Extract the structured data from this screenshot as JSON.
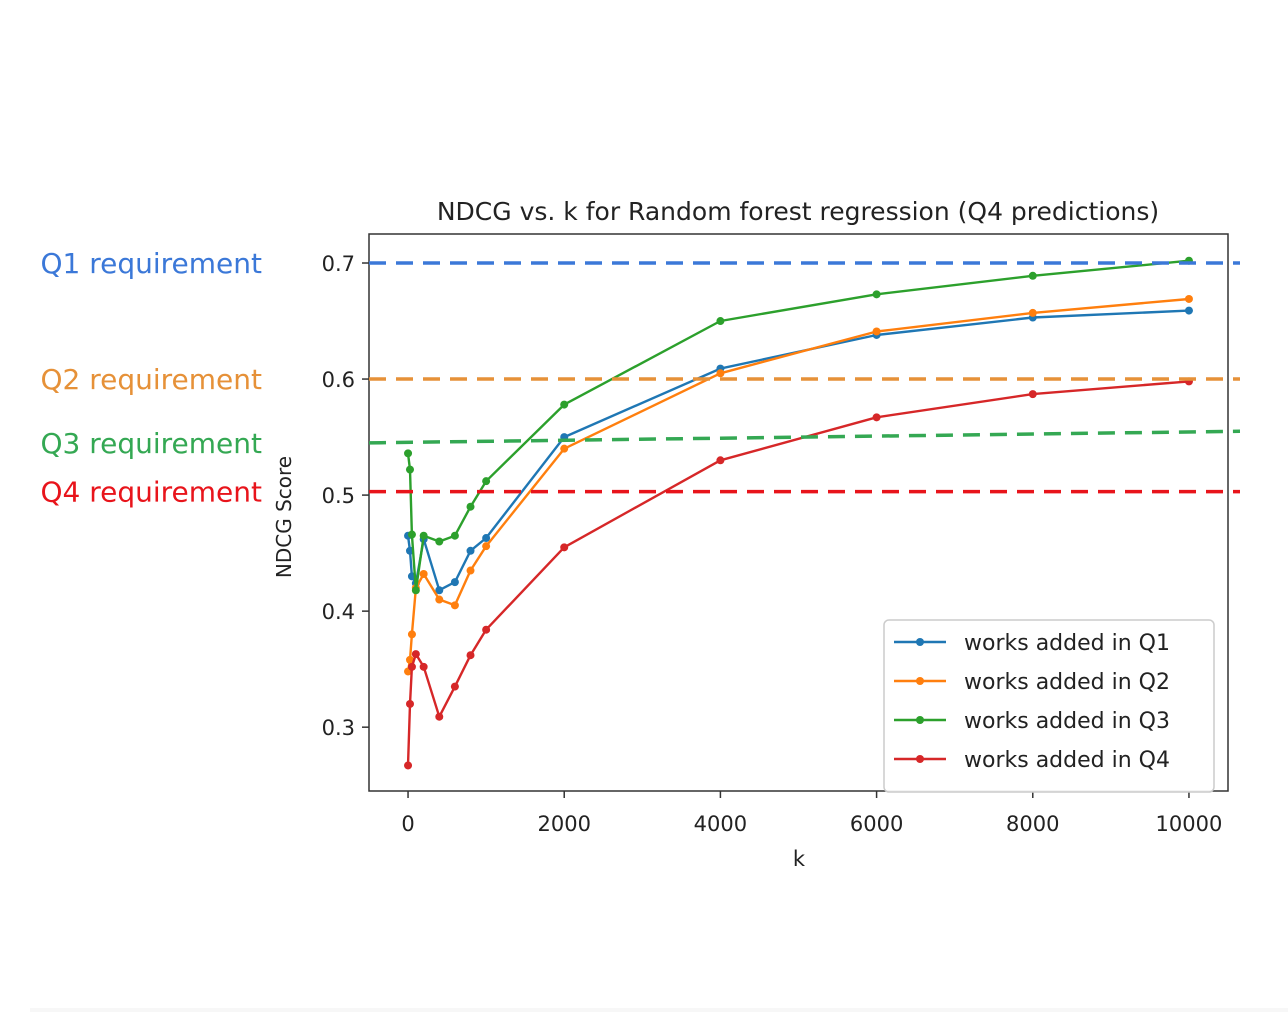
{
  "chart_data": {
    "type": "line",
    "title": "NDCG vs. k for Random forest regression (Q4 predictions)",
    "xlabel": "k",
    "ylabel": "NDCG Score",
    "xlim": [
      -500,
      10500
    ],
    "ylim": [
      0.245,
      0.725
    ],
    "xticks": [
      0,
      2000,
      4000,
      6000,
      8000,
      10000
    ],
    "yticks": [
      0.3,
      0.4,
      0.5,
      0.6,
      0.7
    ],
    "legend": "bottom-right",
    "series": [
      {
        "name": "works added in Q1",
        "color": "#1f77b4",
        "x": [
          0,
          25,
          50,
          100,
          200,
          400,
          600,
          800,
          1000,
          2000,
          4000,
          6000,
          8000,
          10000
        ],
        "y": [
          0.465,
          0.452,
          0.43,
          0.424,
          0.462,
          0.418,
          0.425,
          0.452,
          0.463,
          0.55,
          0.609,
          0.638,
          0.653,
          0.659
        ]
      },
      {
        "name": "works added in Q2",
        "color": "#ff7f0e",
        "x": [
          0,
          25,
          50,
          100,
          200,
          400,
          600,
          800,
          1000,
          2000,
          4000,
          6000,
          8000,
          10000
        ],
        "y": [
          0.348,
          0.358,
          0.38,
          0.42,
          0.432,
          0.41,
          0.405,
          0.435,
          0.456,
          0.54,
          0.605,
          0.641,
          0.657,
          0.669
        ]
      },
      {
        "name": "works added in Q3",
        "color": "#2ca02c",
        "x": [
          0,
          25,
          50,
          100,
          200,
          400,
          600,
          800,
          1000,
          2000,
          4000,
          6000,
          8000,
          10000
        ],
        "y": [
          0.536,
          0.522,
          0.466,
          0.418,
          0.465,
          0.46,
          0.465,
          0.49,
          0.512,
          0.578,
          0.65,
          0.673,
          0.689,
          0.702
        ]
      },
      {
        "name": "works added in Q4",
        "color": "#d62728",
        "x": [
          0,
          25,
          50,
          100,
          200,
          400,
          600,
          800,
          1000,
          2000,
          4000,
          6000,
          8000,
          10000
        ],
        "y": [
          0.267,
          0.32,
          0.352,
          0.363,
          0.352,
          0.309,
          0.335,
          0.362,
          0.384,
          0.455,
          0.53,
          0.567,
          0.587,
          0.598
        ]
      }
    ]
  },
  "annotations": [
    {
      "label": "Q1 requirement",
      "color": "#3b78d8",
      "y_start": 0.7,
      "y_end": 0.7
    },
    {
      "label": "Q2 requirement",
      "color": "#e69138",
      "y_start": 0.6,
      "y_end": 0.6
    },
    {
      "label": "Q3 requirement",
      "color": "#34a853",
      "y_start": 0.545,
      "y_end": 0.555
    },
    {
      "label": "Q4 requirement",
      "color": "#e8141b",
      "y_start": 0.503,
      "y_end": 0.503
    }
  ]
}
